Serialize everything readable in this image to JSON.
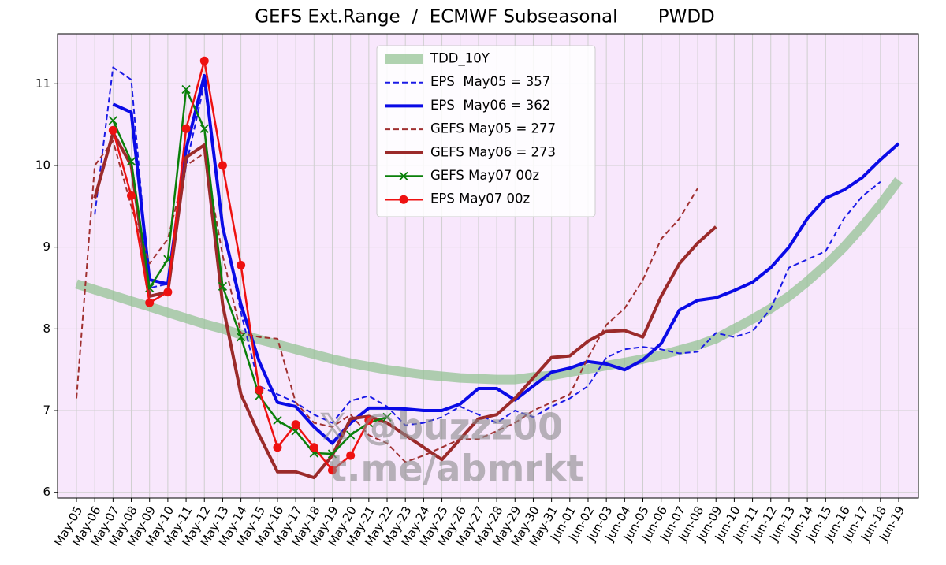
{
  "chart_data": {
    "type": "line",
    "title": "GEFS Ext.Range  /  ECMWF Subseasonal       PWDD",
    "annotations": [
      "𝕏 @buzzz00",
      "t.me/abmrkt"
    ],
    "categories": [
      "May-05",
      "May-06",
      "May-07",
      "May-08",
      "May-09",
      "May-10",
      "May-11",
      "May-12",
      "May-13",
      "May-14",
      "May-15",
      "May-16",
      "May-17",
      "May-18",
      "May-19",
      "May-20",
      "May-21",
      "May-22",
      "May-23",
      "May-24",
      "May-25",
      "May-26",
      "May-27",
      "May-28",
      "May-29",
      "May-30",
      "May-31",
      "Jun-01",
      "Jun-02",
      "Jun-03",
      "Jun-04",
      "Jun-05",
      "Jun-06",
      "Jun-07",
      "Jun-08",
      "Jun-09",
      "Jun-10",
      "Jun-11",
      "Jun-12",
      "Jun-13",
      "Jun-14",
      "Jun-15",
      "Jun-16",
      "Jun-17",
      "Jun-18",
      "Jun-19"
    ],
    "ylim": [
      5.93,
      11.61
    ],
    "yticks": [
      6,
      7,
      8,
      9,
      10,
      11
    ],
    "grid": true,
    "legend": "upper center",
    "series": [
      {
        "name": "TDD_10Y",
        "color": "#8fc08f",
        "width": 12,
        "opacity": 0.7,
        "dashed": false,
        "marker": "none",
        "values": [
          8.55,
          8.48,
          8.41,
          8.34,
          8.27,
          8.2,
          8.13,
          8.06,
          8.0,
          7.93,
          7.87,
          7.81,
          7.75,
          7.69,
          7.63,
          7.58,
          7.54,
          7.5,
          7.47,
          7.44,
          7.42,
          7.4,
          7.39,
          7.38,
          7.38,
          7.41,
          7.43,
          7.47,
          7.51,
          7.55,
          7.59,
          7.63,
          7.68,
          7.74,
          7.8,
          7.88,
          8.0,
          8.12,
          8.25,
          8.4,
          8.58,
          8.78,
          9.0,
          9.25,
          9.52,
          9.82
        ]
      },
      {
        "name": "EPS  May05 = 357",
        "color": "#1a1ae6",
        "width": 2,
        "opacity": 1,
        "dashed": true,
        "marker": "none",
        "values": [
          null,
          9.4,
          11.2,
          11.05,
          8.5,
          8.55,
          10.0,
          11.0,
          9.3,
          8.2,
          7.3,
          7.2,
          7.1,
          6.95,
          6.85,
          7.12,
          7.18,
          7.05,
          6.82,
          6.85,
          6.92,
          7.05,
          6.95,
          6.85,
          7.0,
          6.92,
          7.05,
          7.15,
          7.3,
          7.65,
          7.75,
          7.78,
          7.75,
          7.7,
          7.72,
          7.95,
          7.9,
          7.97,
          8.25,
          8.75,
          8.85,
          8.95,
          9.35,
          9.62,
          9.8,
          null
        ]
      },
      {
        "name": "EPS  May06 = 362",
        "color": "#0a0ae6",
        "width": 4,
        "opacity": 1,
        "dashed": false,
        "marker": "none",
        "values": [
          null,
          null,
          10.75,
          10.65,
          8.6,
          8.55,
          10.2,
          11.1,
          9.25,
          8.3,
          7.6,
          7.1,
          7.05,
          6.8,
          6.6,
          6.85,
          7.03,
          7.03,
          7.02,
          7.0,
          7.0,
          7.08,
          7.27,
          7.27,
          7.13,
          7.3,
          7.47,
          7.52,
          7.6,
          7.57,
          7.5,
          7.62,
          7.82,
          8.23,
          8.35,
          8.38,
          8.47,
          8.57,
          8.75,
          9.0,
          9.35,
          9.6,
          9.7,
          9.85,
          10.07,
          10.27
        ]
      },
      {
        "name": "GEFS May05 = 277",
        "color": "#a03030",
        "width": 2,
        "opacity": 1,
        "dashed": true,
        "marker": "none",
        "values": [
          7.15,
          10.0,
          10.3,
          9.5,
          8.8,
          9.1,
          10.0,
          10.15,
          8.9,
          7.95,
          7.9,
          7.88,
          7.1,
          6.85,
          6.8,
          6.95,
          6.7,
          6.6,
          6.37,
          6.45,
          6.55,
          6.65,
          6.65,
          6.75,
          6.85,
          7.0,
          7.1,
          7.2,
          7.65,
          8.05,
          8.25,
          8.6,
          9.1,
          9.35,
          9.72,
          null,
          null,
          null,
          null,
          null,
          null,
          null,
          null,
          null,
          null,
          null
        ]
      },
      {
        "name": "GEFS May06 = 273",
        "color": "#9b2a2a",
        "width": 4,
        "opacity": 1,
        "dashed": false,
        "marker": "none",
        "values": [
          null,
          9.6,
          10.4,
          10.0,
          8.4,
          8.45,
          10.1,
          10.25,
          8.3,
          7.2,
          6.7,
          6.25,
          6.25,
          6.18,
          6.45,
          6.9,
          6.93,
          6.85,
          6.7,
          6.55,
          6.4,
          6.65,
          6.9,
          6.95,
          7.15,
          7.4,
          7.65,
          7.67,
          7.85,
          7.97,
          7.98,
          7.9,
          8.4,
          8.8,
          9.05,
          9.25,
          null,
          null,
          null,
          null,
          null,
          null,
          null,
          null,
          null,
          null
        ]
      },
      {
        "name": "GEFS May07 00z",
        "color": "#0a800a",
        "width": 2.5,
        "opacity": 1,
        "dashed": false,
        "marker": "x",
        "values": [
          null,
          null,
          10.55,
          10.05,
          8.5,
          8.85,
          10.93,
          10.45,
          8.52,
          7.9,
          7.18,
          6.88,
          6.75,
          6.48,
          6.47,
          6.7,
          6.85,
          6.92,
          null,
          null,
          null,
          null,
          null,
          null,
          null,
          null,
          null,
          null,
          null,
          null,
          null,
          null,
          null,
          null,
          null,
          null,
          null,
          null,
          null,
          null,
          null,
          null,
          null,
          null,
          null,
          null
        ]
      },
      {
        "name": "EPS May07 00z",
        "color": "#ee1111",
        "width": 2.5,
        "opacity": 1,
        "dashed": false,
        "marker": "o",
        "values": [
          null,
          null,
          10.43,
          9.63,
          8.32,
          8.45,
          10.45,
          11.28,
          10.0,
          8.78,
          7.25,
          6.55,
          6.83,
          6.55,
          6.27,
          6.45,
          6.88,
          null,
          null,
          null,
          null,
          null,
          null,
          null,
          null,
          null,
          null,
          null,
          null,
          null,
          null,
          null,
          null,
          null,
          null,
          null,
          null,
          null,
          null,
          null,
          null,
          null,
          null,
          null,
          null,
          null
        ]
      }
    ]
  }
}
